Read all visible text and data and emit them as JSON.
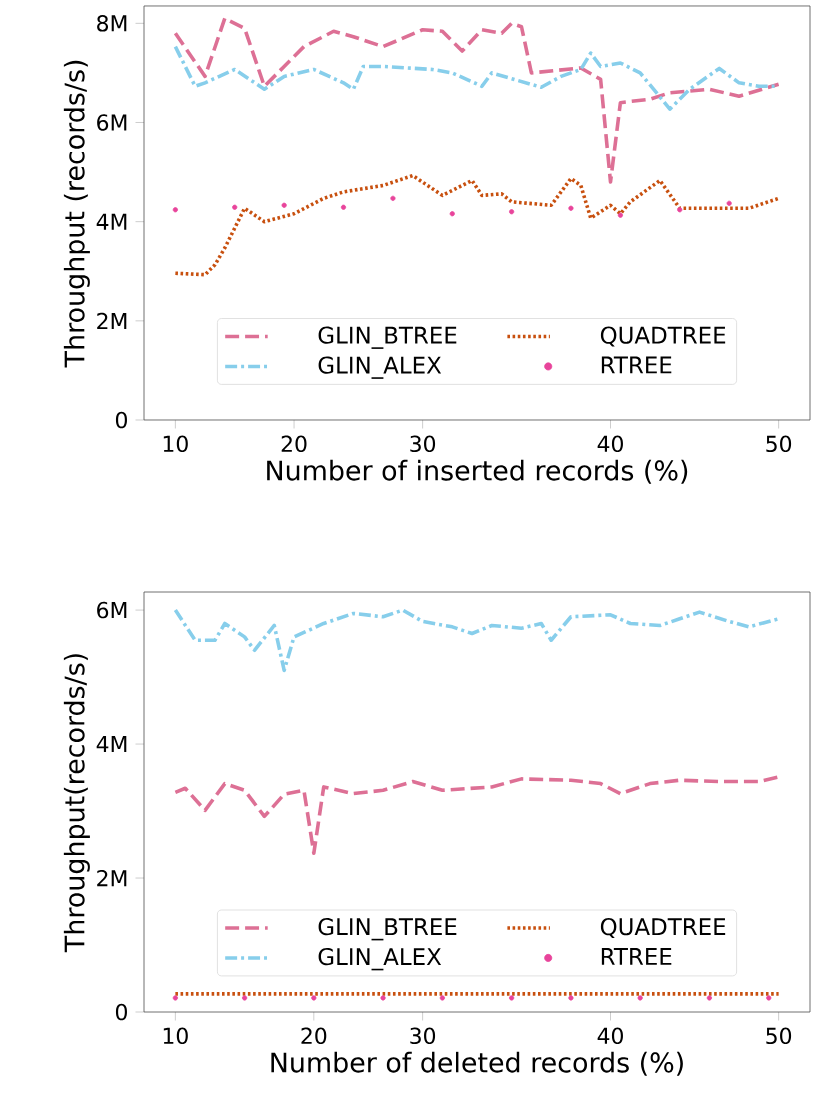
{
  "chart_data": [
    {
      "type": "line",
      "xlabel": "Number of inserted records (%)",
      "ylabel": "Throughput (records/s)",
      "categories": [
        "10",
        null,
        null,
        null,
        null,
        null,
        null,
        null,
        null,
        null,
        null,
        null,
        "20",
        null,
        null,
        null,
        null,
        null,
        null,
        null,
        null,
        null,
        null,
        null,
        null,
        "30",
        null,
        null,
        null,
        null,
        null,
        null,
        null,
        null,
        null,
        null,
        null,
        null,
        null,
        null,
        null,
        null,
        null,
        null,
        "40",
        null,
        null,
        null,
        null,
        null,
        null,
        null,
        null,
        null,
        null,
        null,
        null,
        null,
        null,
        null,
        null,
        "50"
      ],
      "ylim": [
        0,
        8.35
      ],
      "yticks": [
        0,
        {
          "value": 2,
          "label": "2M"
        },
        {
          "value": 4,
          "label": "4M"
        },
        {
          "value": 6,
          "label": "6M"
        },
        {
          "value": 8,
          "label": "8M"
        }
      ],
      "legend": "bottom",
      "series": [
        {
          "name": "GLIN_BTREE",
          "color": "#dd7095",
          "line_style": "dashed",
          "values": [
            7.8,
            null,
            null,
            6.93,
            null,
            8.1,
            null,
            7.9,
            null,
            6.73,
            null,
            7.13,
            null,
            7.53,
            null,
            null,
            7.84,
            null,
            7.73,
            null,
            null,
            7.53,
            null,
            null,
            null,
            7.87,
            null,
            7.84,
            null,
            7.44,
            null,
            7.87,
            null,
            7.8,
            8.0,
            7.93,
            7.0,
            null,
            null,
            null,
            null,
            7.1,
            null,
            6.87,
            4.8,
            6.4,
            null,
            null,
            6.47,
            null,
            6.6,
            null,
            null,
            null,
            6.67,
            null,
            null,
            6.53,
            null,
            null,
            null,
            6.77
          ]
        },
        {
          "name": "GLIN_ALEX",
          "color": "#87ceeb",
          "line_style": "dashdot",
          "values": [
            7.53,
            null,
            6.73,
            6.8,
            null,
            null,
            7.07,
            null,
            null,
            6.67,
            null,
            6.93,
            null,
            null,
            7.07,
            null,
            null,
            6.8,
            6.67,
            7.13,
            null,
            7.13,
            null,
            null,
            null,
            null,
            7.07,
            null,
            7.0,
            null,
            null,
            6.73,
            7.0,
            null,
            null,
            null,
            null,
            6.71,
            null,
            6.93,
            null,
            7.07,
            7.4,
            7.13,
            null,
            7.2,
            null,
            7.0,
            null,
            null,
            6.27,
            null,
            6.67,
            null,
            null,
            7.09,
            null,
            6.8,
            null,
            6.73,
            null,
            6.73
          ]
        },
        {
          "name": "QUADTREE",
          "color": "#c8500f",
          "line_style": "dotted",
          "values": [
            2.96,
            null,
            null,
            2.93,
            3.13,
            3.47,
            null,
            4.27,
            null,
            4.0,
            null,
            null,
            4.16,
            null,
            null,
            4.47,
            null,
            4.6,
            null,
            null,
            null,
            4.73,
            null,
            null,
            4.93,
            null,
            null,
            4.53,
            null,
            null,
            4.83,
            4.53,
            null,
            4.56,
            4.4,
            null,
            null,
            null,
            4.33,
            null,
            4.87,
            4.73,
            4.07,
            null,
            4.33,
            4.16,
            4.4,
            null,
            null,
            4.83,
            null,
            4.27,
            null,
            null,
            null,
            4.27,
            null,
            null,
            4.27,
            null,
            null,
            4.47
          ]
        },
        {
          "name": "RTREE",
          "color": "#e8449b",
          "type": "scatter",
          "marker": "circle",
          "values": [
            4.24,
            null,
            null,
            null,
            null,
            null,
            4.29,
            null,
            null,
            null,
            null,
            4.33,
            null,
            null,
            null,
            null,
            null,
            4.29,
            null,
            null,
            null,
            null,
            4.47,
            null,
            null,
            null,
            null,
            null,
            4.16,
            null,
            null,
            null,
            null,
            null,
            4.2,
            null,
            null,
            null,
            null,
            null,
            4.27,
            null,
            null,
            null,
            null,
            4.13,
            null,
            null,
            null,
            null,
            null,
            4.24,
            null,
            null,
            null,
            null,
            4.37,
            null,
            null,
            null,
            null,
            null
          ]
        }
      ]
    },
    {
      "type": "line",
      "xlabel": "Number of deleted records (%)",
      "ylabel": "Throughput(records/s)",
      "categories": [
        "10",
        null,
        null,
        null,
        null,
        null,
        null,
        null,
        null,
        null,
        null,
        null,
        null,
        null,
        "20",
        null,
        null,
        null,
        null,
        null,
        null,
        null,
        null,
        null,
        null,
        "30",
        null,
        null,
        null,
        null,
        null,
        null,
        null,
        null,
        null,
        null,
        null,
        null,
        null,
        null,
        null,
        null,
        null,
        null,
        "40",
        null,
        null,
        null,
        null,
        null,
        null,
        null,
        null,
        null,
        null,
        null,
        null,
        null,
        null,
        null,
        null,
        "50"
      ],
      "ylim": [
        0,
        6.27
      ],
      "yticks": [
        0,
        {
          "value": 2,
          "label": "2M"
        },
        {
          "value": 4,
          "label": "4M"
        },
        {
          "value": 6,
          "label": "6M"
        }
      ],
      "legend": "bottom",
      "series": [
        {
          "name": "GLIN_BTREE",
          "color": "#dd7095",
          "line_style": "dashed",
          "values": [
            3.28,
            3.34,
            null,
            3.01,
            null,
            3.41,
            null,
            3.31,
            null,
            2.92,
            null,
            3.25,
            null,
            3.31,
            2.37,
            3.36,
            null,
            null,
            3.26,
            null,
            null,
            3.31,
            null,
            null,
            3.44,
            null,
            null,
            3.31,
            null,
            null,
            null,
            null,
            3.36,
            null,
            null,
            3.48,
            null,
            null,
            null,
            null,
            3.46,
            null,
            null,
            3.41,
            null,
            3.26,
            null,
            null,
            3.41,
            null,
            null,
            3.46,
            null,
            null,
            null,
            3.44,
            null,
            null,
            null,
            3.44,
            null,
            3.51
          ]
        },
        {
          "name": "GLIN_ALEX",
          "color": "#87ceeb",
          "line_style": "dashdot",
          "values": [
            6.0,
            null,
            5.55,
            null,
            5.55,
            5.8,
            null,
            5.6,
            5.4,
            null,
            5.77,
            5.1,
            5.6,
            null,
            null,
            5.8,
            null,
            null,
            5.95,
            null,
            null,
            5.9,
            null,
            6.0,
            null,
            5.83,
            null,
            null,
            5.75,
            null,
            5.65,
            null,
            5.77,
            null,
            null,
            5.73,
            null,
            5.8,
            5.55,
            null,
            5.9,
            null,
            null,
            null,
            5.93,
            null,
            5.8,
            null,
            null,
            5.77,
            null,
            5.87,
            null,
            5.97,
            null,
            null,
            5.83,
            null,
            5.75,
            null,
            null,
            5.87
          ]
        },
        {
          "name": "QUADTREE",
          "color": "#c8500f",
          "line_style": "dotted",
          "values": [
            0.27,
            null,
            null,
            null,
            null,
            null,
            null,
            null,
            null,
            null,
            null,
            null,
            null,
            null,
            null,
            0.27,
            null,
            null,
            null,
            null,
            null,
            null,
            null,
            null,
            null,
            null,
            null,
            null,
            null,
            null,
            0.27,
            null,
            null,
            null,
            null,
            null,
            null,
            null,
            null,
            null,
            null,
            null,
            null,
            null,
            null,
            0.27,
            null,
            null,
            null,
            null,
            null,
            null,
            null,
            null,
            null,
            null,
            null,
            null,
            null,
            null,
            null,
            0.27
          ]
        },
        {
          "name": "RTREE",
          "color": "#e8449b",
          "type": "scatter",
          "marker": "circle",
          "values": [
            0.21,
            null,
            null,
            null,
            null,
            null,
            null,
            0.21,
            null,
            null,
            null,
            null,
            null,
            null,
            0.21,
            null,
            null,
            null,
            null,
            null,
            null,
            0.21,
            null,
            null,
            null,
            null,
            null,
            0.21,
            null,
            null,
            null,
            null,
            null,
            null,
            0.21,
            null,
            null,
            null,
            null,
            null,
            0.21,
            null,
            null,
            null,
            null,
            null,
            null,
            0.21,
            null,
            null,
            null,
            null,
            null,
            null,
            0.21,
            null,
            null,
            null,
            null,
            null,
            0.21,
            null
          ]
        }
      ]
    }
  ]
}
